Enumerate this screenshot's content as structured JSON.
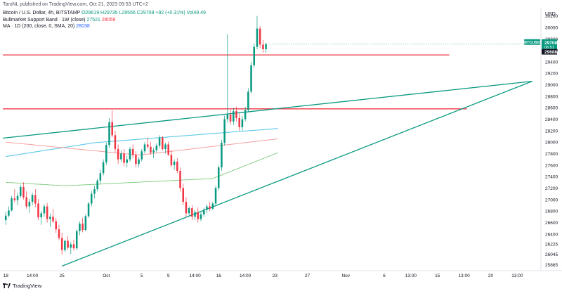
{
  "header": "TaroNL published on TradingView.com, Oct 21, 2023 09:53 UTC+2",
  "legend": {
    "symbol": "Bitcoin / U.S. Dollar, 4h, BITSTAMP",
    "ohlc": "O29619 H29735 L29556 C29708 +92 (+0.31%) Vol49.49",
    "band_label": "Bullmarket Support Band · 1W (close)",
    "band_v1": "27521",
    "band_v2": "28058",
    "ma_label": "MA · 1D (200, close, 0, SMA, 20)",
    "ma_value": "28038"
  },
  "footer": {
    "brand": "TradingView"
  },
  "price_labels": {
    "currency": "USD",
    "symbol": "BTCUSD",
    "price": "29708",
    "countdown": "06:51",
    "level": "29688"
  },
  "colors": {
    "up": "#089981",
    "down": "#f23645",
    "line_teal": "#089981",
    "line_red": "#f23645",
    "band_cyan": "#5ac8e8",
    "band_pink": "#f4a0a0",
    "ma_green": "#6cc46c"
  },
  "chart_data": {
    "type": "candlestick",
    "symbol": "BTCUSD",
    "timeframe": "4h",
    "y_axis": {
      "ticks": [
        25865,
        26045,
        26225,
        26400,
        26600,
        26800,
        27000,
        27200,
        27400,
        27600,
        27800,
        28000,
        28200,
        28400,
        28600,
        28800,
        29000,
        29200,
        29400,
        29600,
        29800,
        30000,
        30200
      ],
      "range": [
        25760,
        30330
      ]
    },
    "x_axis": {
      "ticks": [
        {
          "label": "18",
          "i": 0
        },
        {
          "label": "14:00",
          "i": 9
        },
        {
          "label": "25",
          "i": 19
        },
        {
          "label": "Oct",
          "i": 34
        },
        {
          "label": "5",
          "i": 46
        },
        {
          "label": "9",
          "i": 55
        },
        {
          "label": "14:00",
          "i": 64
        },
        {
          "label": "16",
          "i": 72
        },
        {
          "label": "14:00",
          "i": 81
        },
        {
          "label": "23",
          "i": 91
        },
        {
          "label": "27",
          "i": 102
        },
        {
          "label": "Nov",
          "i": 115
        },
        {
          "label": "6",
          "i": 128
        },
        {
          "label": "13:00",
          "i": 137
        },
        {
          "label": "15",
          "i": 146
        },
        {
          "label": "13:00",
          "i": 155
        },
        {
          "label": "20",
          "i": 164
        },
        {
          "label": "13:00",
          "i": 173
        }
      ],
      "range": [
        -1,
        181
      ]
    },
    "candles": [
      [
        26640,
        26790,
        26560,
        26720
      ],
      [
        26720,
        26880,
        26690,
        26810
      ],
      [
        26810,
        27060,
        26790,
        27020
      ],
      [
        27020,
        27180,
        26950,
        26990
      ],
      [
        26990,
        27120,
        26900,
        27060
      ],
      [
        27060,
        27260,
        27030,
        27220
      ],
      [
        27220,
        27300,
        27000,
        27040
      ],
      [
        27040,
        27140,
        26840,
        26880
      ],
      [
        26880,
        27010,
        26770,
        26960
      ],
      [
        26960,
        27120,
        26900,
        27080
      ],
      [
        27080,
        27180,
        26870,
        26930
      ],
      [
        26930,
        27010,
        26640,
        26690
      ],
      [
        26690,
        26800,
        26560,
        26760
      ],
      [
        26760,
        26920,
        26700,
        26880
      ],
      [
        26880,
        26940,
        26600,
        26660
      ],
      [
        26660,
        26760,
        26520,
        26700
      ],
      [
        26700,
        26840,
        26590,
        26620
      ],
      [
        26620,
        26680,
        26420,
        26480
      ],
      [
        26480,
        26560,
        26290,
        26330
      ],
      [
        26330,
        26420,
        26040,
        26120
      ],
      [
        26120,
        26300,
        26090,
        26280
      ],
      [
        26280,
        26360,
        26130,
        26160
      ],
      [
        26160,
        26260,
        26050,
        26220
      ],
      [
        26220,
        26300,
        26110,
        26150
      ],
      [
        26150,
        26480,
        26120,
        26450
      ],
      [
        26450,
        26620,
        26380,
        26580
      ],
      [
        26580,
        26680,
        26430,
        26470
      ],
      [
        26470,
        26740,
        26450,
        26710
      ],
      [
        26710,
        26960,
        26680,
        26930
      ],
      [
        26930,
        27150,
        26880,
        27100
      ],
      [
        27100,
        27240,
        27020,
        27180
      ],
      [
        27180,
        27360,
        27140,
        27330
      ],
      [
        27330,
        27520,
        27280,
        27460
      ],
      [
        27460,
        27700,
        27420,
        27650
      ],
      [
        27650,
        27990,
        27600,
        27950
      ],
      [
        27950,
        28420,
        27900,
        28350
      ],
      [
        28350,
        28560,
        28080,
        28120
      ],
      [
        28120,
        28200,
        27820,
        27880
      ],
      [
        27880,
        27960,
        27620,
        27700
      ],
      [
        27700,
        27860,
        27650,
        27800
      ],
      [
        27800,
        27880,
        27580,
        27640
      ],
      [
        27640,
        27760,
        27560,
        27700
      ],
      [
        27700,
        27920,
        27660,
        27880
      ],
      [
        27880,
        27960,
        27720,
        27780
      ],
      [
        27780,
        27840,
        27560,
        27620
      ],
      [
        27620,
        27740,
        27560,
        27700
      ],
      [
        27700,
        27880,
        27660,
        27840
      ],
      [
        27840,
        28000,
        27800,
        27960
      ],
      [
        27960,
        28080,
        27880,
        27920
      ],
      [
        27920,
        28000,
        27780,
        27820
      ],
      [
        27820,
        27900,
        27720,
        27860
      ],
      [
        27860,
        27980,
        27820,
        27940
      ],
      [
        27940,
        28120,
        27900,
        28080
      ],
      [
        28080,
        28110,
        27850,
        27880
      ],
      [
        27880,
        27990,
        27800,
        27960
      ],
      [
        27960,
        28010,
        27760,
        27780
      ],
      [
        27780,
        27860,
        27560,
        27600
      ],
      [
        27600,
        27700,
        27520,
        27660
      ],
      [
        27660,
        27720,
        27460,
        27500
      ],
      [
        27500,
        27560,
        27140,
        27200
      ],
      [
        27200,
        27280,
        26900,
        26960
      ],
      [
        26960,
        27040,
        26700,
        26760
      ],
      [
        26760,
        26880,
        26700,
        26850
      ],
      [
        26850,
        26900,
        26640,
        26700
      ],
      [
        26700,
        26820,
        26640,
        26780
      ],
      [
        26780,
        26860,
        26600,
        26660
      ],
      [
        26660,
        26780,
        26620,
        26740
      ],
      [
        26740,
        26860,
        26700,
        26820
      ],
      [
        26820,
        26920,
        26760,
        26880
      ],
      [
        26880,
        26960,
        26800,
        26840
      ],
      [
        26840,
        26960,
        26820,
        26930
      ],
      [
        26930,
        27240,
        26910,
        27200
      ],
      [
        27200,
        27600,
        27160,
        27560
      ],
      [
        27560,
        28040,
        27500,
        27990
      ],
      [
        27990,
        28460,
        27940,
        28400
      ],
      [
        28400,
        29880,
        28340,
        28480
      ],
      [
        28480,
        28560,
        28300,
        28360
      ],
      [
        28360,
        28600,
        28300,
        28540
      ],
      [
        28540,
        28620,
        28360,
        28420
      ],
      [
        28420,
        28500,
        28200,
        28260
      ],
      [
        28260,
        28460,
        28200,
        28400
      ],
      [
        28400,
        28620,
        28360,
        28560
      ],
      [
        28560,
        28940,
        28520,
        28880
      ],
      [
        28880,
        29400,
        28850,
        29340
      ],
      [
        29340,
        29720,
        29300,
        29660
      ],
      [
        29660,
        30200,
        29620,
        29980
      ],
      [
        29980,
        30020,
        29640,
        29700
      ],
      [
        29700,
        29780,
        29560,
        29619
      ],
      [
        29619,
        29735,
        29556,
        29708
      ]
    ],
    "horizontal_lines": [
      {
        "label": "resistance-upper",
        "price": 29520,
        "x_from": -1,
        "x_to": 150
      },
      {
        "label": "resistance-lower",
        "price": 28580,
        "x_from": -1,
        "x_to": 156
      }
    ],
    "trend_lines": [
      {
        "label": "upper-trendline",
        "p1": [
          -1,
          28070
        ],
        "p2": [
          178,
          29060
        ]
      },
      {
        "label": "lower-trendline",
        "p1": [
          19,
          25840
        ],
        "p2": [
          178,
          29060
        ]
      }
    ]
  }
}
